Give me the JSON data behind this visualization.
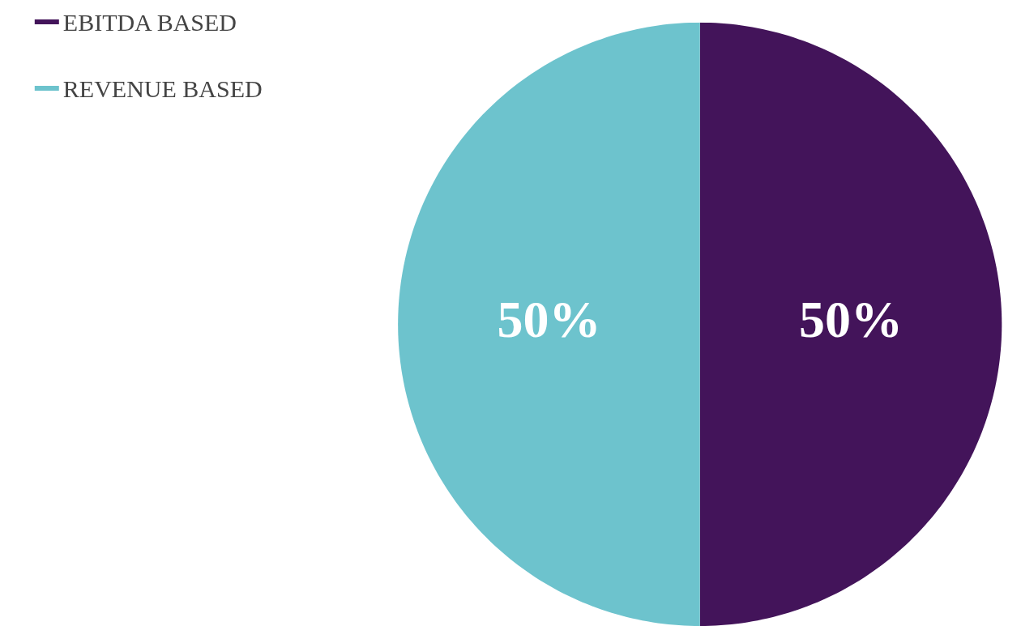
{
  "chart_data": {
    "type": "pie",
    "categories": [
      "EBITDA BASED",
      "REVENUE BASED"
    ],
    "values": [
      50,
      50
    ],
    "colors": [
      "#43145a",
      "#6dc3cd"
    ],
    "value_labels": [
      "50%",
      "50%"
    ],
    "legend": "top left"
  }
}
